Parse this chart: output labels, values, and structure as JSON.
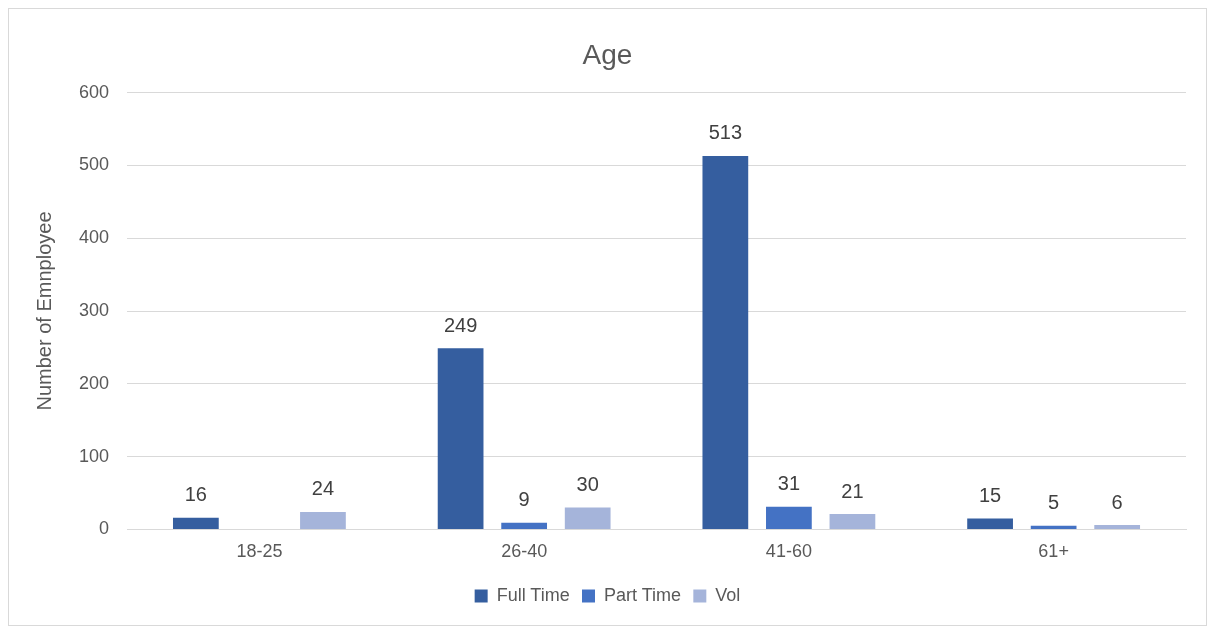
{
  "chart_data": {
    "type": "bar",
    "title": "Age",
    "ylabel": "Number of Emnployee",
    "categories": [
      "18-25",
      "26-40",
      "41-60",
      "61+"
    ],
    "series": [
      {
        "name": "Full Time",
        "color": "#355e9f",
        "values": [
          16,
          249,
          513,
          15
        ]
      },
      {
        "name": "Part Time",
        "color": "#4472c4",
        "values": [
          null,
          9,
          31,
          5
        ]
      },
      {
        "name": "Vol",
        "color": "#a5b4da",
        "values": [
          24,
          30,
          21,
          6
        ]
      }
    ],
    "ylim": [
      0,
      600
    ],
    "yticks": [
      0,
      100,
      200,
      300,
      400,
      500,
      600
    ],
    "grid": "y",
    "legend": "bottom",
    "data_labels": true
  }
}
